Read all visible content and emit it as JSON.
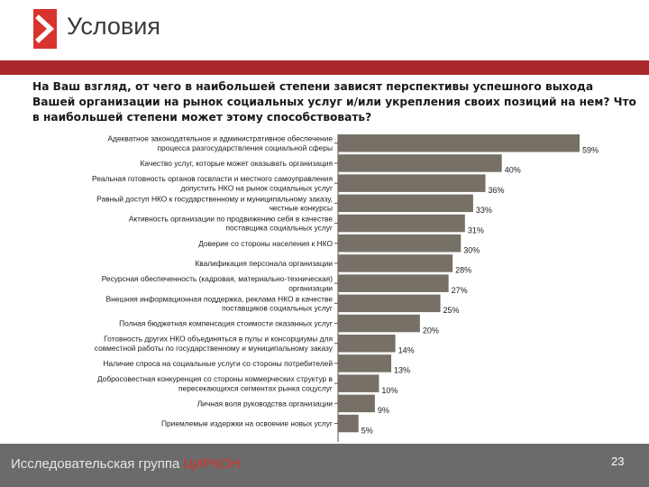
{
  "header": {
    "title": "Условия",
    "logo_icon": "chevron-right-icon",
    "accent_color": "#d8332e",
    "bar_color": "#a9282b"
  },
  "question": "На Ваш взгляд, от чего в наибольшей степени зависят перспективы успешного выхода Вашей организации на рынок социальных услуг и/или укрепления своих позиций на нем? Что в наибольшей степени может этому способствовать?",
  "chart_data": {
    "type": "bar",
    "orientation": "horizontal",
    "bar_color": "#777067",
    "value_suffix": "%",
    "categories": [
      [
        "Адекватное законодательное и административное обеспечение",
        "процесса разгосударствления социальной сферы"
      ],
      [
        "Качество услуг, которые может оказывать организация"
      ],
      [
        "Реальная готовность органов госвласти и местного самоуправления",
        "допустить НКО на рынок социальных услуг"
      ],
      [
        "Равный доступ НКО к государственному и муниципальному заказу,",
        "честные конкурсы"
      ],
      [
        "Активность организации по продвижению себя в качестве",
        "поставщика социальных услуг"
      ],
      [
        "Доверие со стороны населения к НКО"
      ],
      [
        "Квалификация персонала организации"
      ],
      [
        "Ресурсная обеспеченность (кадровая, материально-техническая)",
        "организации"
      ],
      [
        "Внешняя информационная поддержка, реклама НКО в качестве",
        "поставщиков социальных услуг"
      ],
      [
        "Полная бюджетная компенсация стоимости оказанных услуг"
      ],
      [
        "Готовность других НКО объединяться в пулы и консорциумы для",
        "совместной работы по государственному и муниципальному заказу"
      ],
      [
        "Наличие спроса на социальные услуги со стороны потребителей"
      ],
      [
        "Добросовестная конкуренция со стороны коммерческих структур в",
        "пересекающихся сегментах рынка соцуслуг"
      ],
      [
        "Личная воля руководства организации"
      ],
      [
        "Приемлемые издержки на освоение новых услуг"
      ]
    ],
    "values": [
      59,
      40,
      36,
      33,
      31,
      30,
      28,
      27,
      25,
      20,
      14,
      13,
      10,
      9,
      5
    ],
    "xlim": [
      0,
      59
    ]
  },
  "footer": {
    "brand_prefix": "Исследовательская группа ",
    "brand_accent": "ЦИРКОН",
    "page_number": "23"
  }
}
